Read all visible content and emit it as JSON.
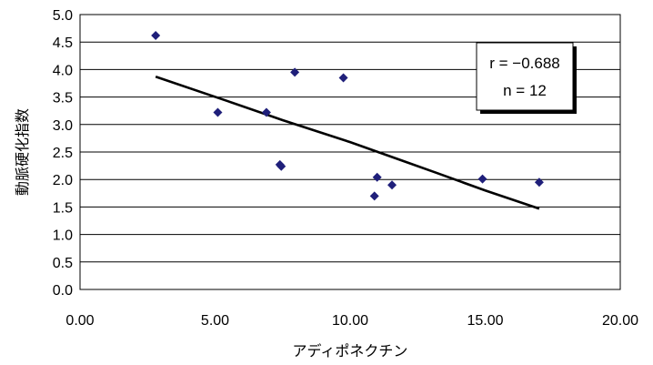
{
  "chart_data": {
    "type": "scatter",
    "xlabel": "アディポネクチン",
    "ylabel": "動脈硬化指数",
    "xlim": [
      0,
      20
    ],
    "ylim": [
      0,
      5
    ],
    "x_ticks": [
      "0.00",
      "5.00",
      "10.00",
      "15.00",
      "20.00"
    ],
    "y_ticks": [
      "0.0",
      "0.5",
      "1.0",
      "1.5",
      "2.0",
      "2.5",
      "3.0",
      "3.5",
      "4.0",
      "4.5",
      "5.0"
    ],
    "grid": "horizontal",
    "marker_color": "#1f1f7a",
    "line_color": "#000000",
    "points": [
      {
        "x": 2.8,
        "y": 4.62
      },
      {
        "x": 5.1,
        "y": 3.22
      },
      {
        "x": 6.9,
        "y": 3.22
      },
      {
        "x": 7.4,
        "y": 2.27
      },
      {
        "x": 7.45,
        "y": 2.24
      },
      {
        "x": 7.95,
        "y": 3.95
      },
      {
        "x": 9.75,
        "y": 3.85
      },
      {
        "x": 10.9,
        "y": 1.7
      },
      {
        "x": 11.0,
        "y": 2.04
      },
      {
        "x": 11.55,
        "y": 1.9
      },
      {
        "x": 14.9,
        "y": 2.01
      },
      {
        "x": 17.0,
        "y": 1.95
      }
    ],
    "trend_line": [
      {
        "x": 2.8,
        "y": 3.87
      },
      {
        "x": 5.5,
        "y": 3.42
      },
      {
        "x": 7.5,
        "y": 3.08
      },
      {
        "x": 10.0,
        "y": 2.68
      },
      {
        "x": 12.0,
        "y": 2.33
      },
      {
        "x": 13.2,
        "y": 2.12
      },
      {
        "x": 15.0,
        "y": 1.8
      },
      {
        "x": 17.0,
        "y": 1.47
      }
    ],
    "annotation": {
      "r_text": "r = −0.688",
      "n_text": "n = 12"
    }
  }
}
